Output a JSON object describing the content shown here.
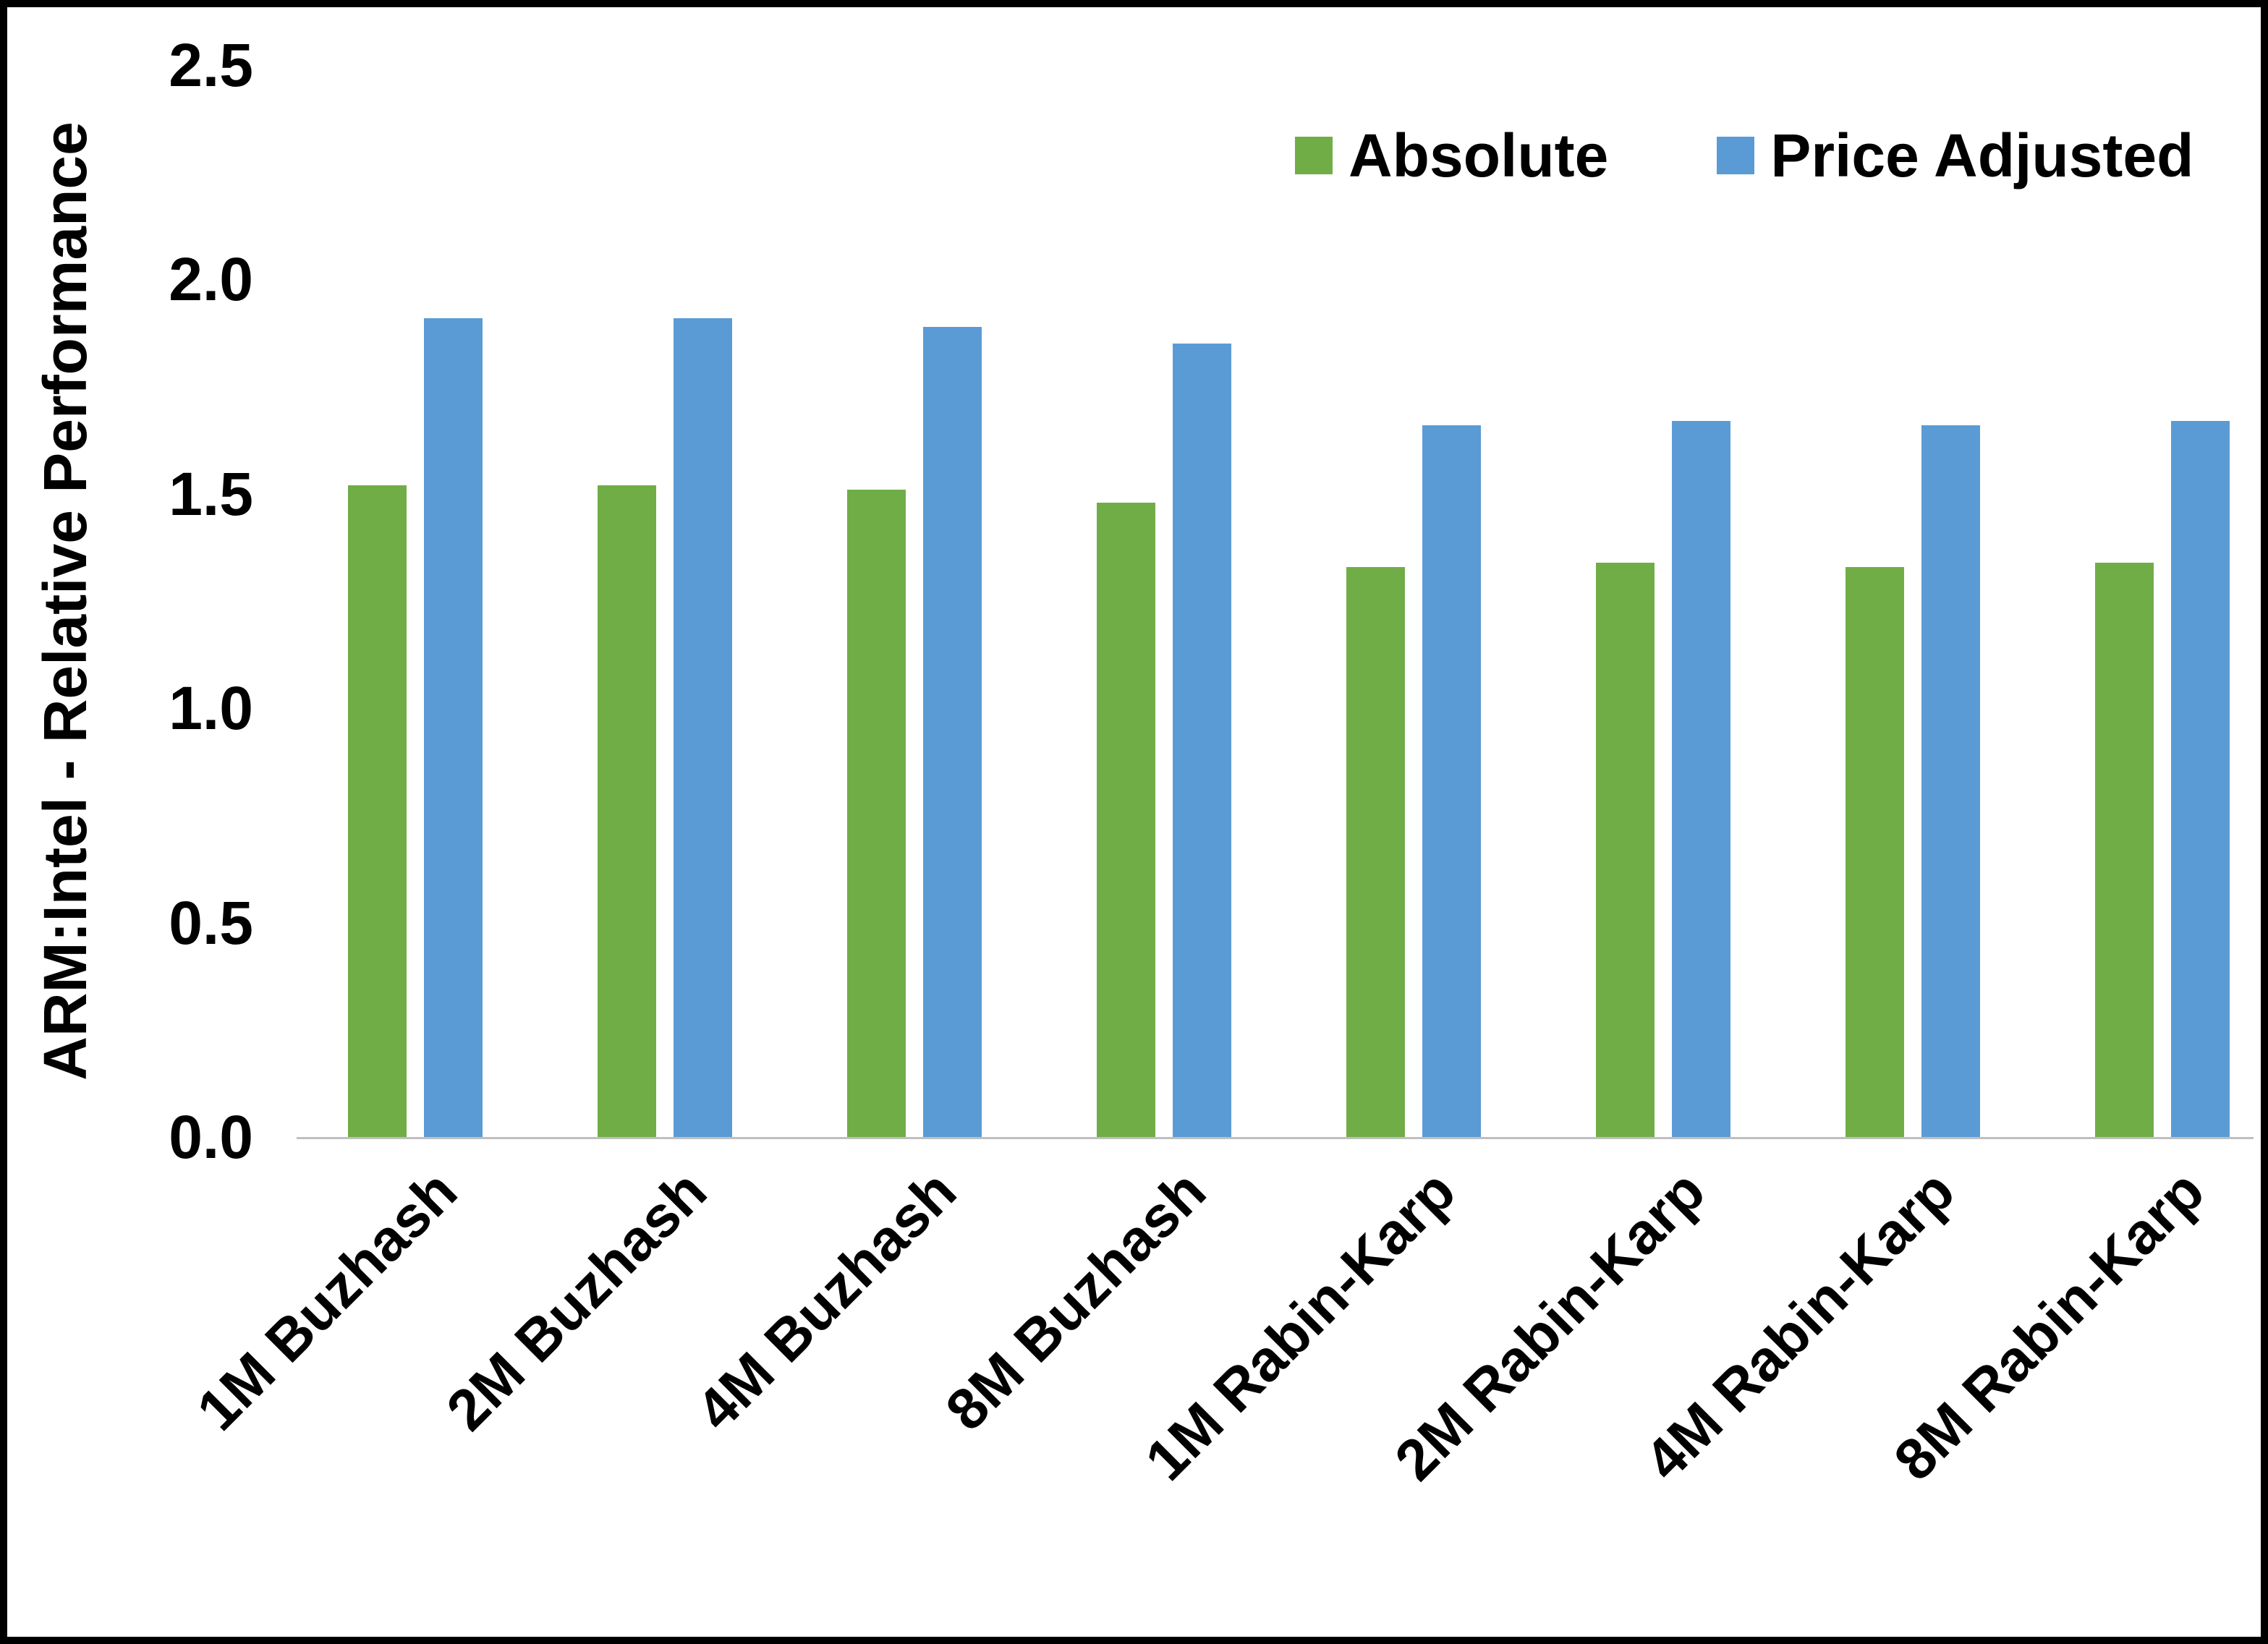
{
  "chart_data": {
    "type": "bar",
    "title": "",
    "xlabel": "",
    "ylabel": "ARM:Intel - Relative Performance",
    "ylim": [
      0,
      2.5
    ],
    "yticks": [
      0.0,
      0.5,
      1.0,
      1.5,
      2.0,
      2.5
    ],
    "ytick_labels": [
      "0.0",
      "0.5",
      "1.0",
      "1.5",
      "2.0",
      "2.5"
    ],
    "grid": false,
    "legend_position": "top",
    "categories": [
      "1M Buzhash",
      "2M Buzhash",
      "4M Buzhash",
      "8M Buzhash",
      "1M Rabin-Karp",
      "2M Rabin-Karp",
      "4M Rabin-Karp",
      "8M Rabin-Karp"
    ],
    "series": [
      {
        "name": "Absolute",
        "color": "#70AD47",
        "values": [
          1.52,
          1.52,
          1.51,
          1.48,
          1.33,
          1.34,
          1.33,
          1.34
        ]
      },
      {
        "name": "Price Adjusted",
        "color": "#5B9BD5",
        "values": [
          1.91,
          1.91,
          1.89,
          1.85,
          1.66,
          1.67,
          1.66,
          1.67
        ]
      }
    ],
    "axis_line_color": "#bfbfbf"
  }
}
